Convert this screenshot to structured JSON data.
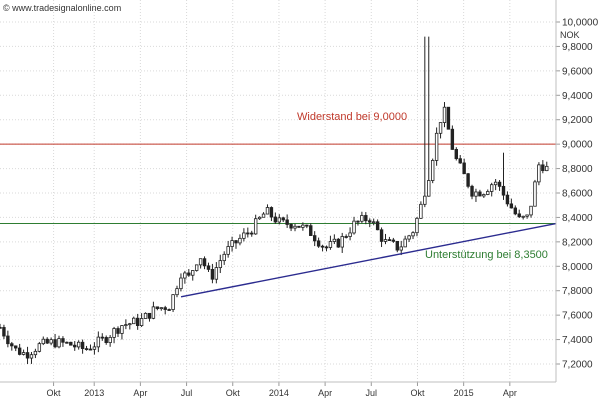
{
  "chart_data": {
    "type": "candlestick",
    "title": "",
    "source": "© www.tradesignalonline.com",
    "unit": "NOK",
    "ylim": [
      7.2,
      10.0
    ],
    "y_ticks": [
      "10,0000",
      "9,8000",
      "9,6000",
      "9,4000",
      "9,2000",
      "9,0000",
      "8,8000",
      "8,6000",
      "8,4000",
      "8,2000",
      "8,0000",
      "7,8000",
      "7,6000",
      "7,4000",
      "7,2000"
    ],
    "x_ticks": [
      "Okt",
      "2013",
      "Apr",
      "Jul",
      "Okt",
      "2014",
      "Apr",
      "Jul",
      "Okt",
      "2015",
      "Apr"
    ],
    "x_tick_positions": [
      1.03,
      1.25,
      1.5,
      1.75,
      2.0,
      2.25,
      2.5,
      2.75,
      3.0,
      3.25,
      3.5
    ],
    "x_range": [
      0.74,
      3.75
    ],
    "grid": true,
    "resistance": {
      "value": 9.0,
      "label": "Widerstand bei 9,0000",
      "color": "#c0392b"
    },
    "support_level": {
      "value": 8.35,
      "label": "Unterstützung bei 8,3500",
      "color": "#2e7d32"
    },
    "trendline": {
      "from": [
        1.72,
        7.75
      ],
      "to": [
        3.75,
        8.35
      ],
      "color": "#2b2b8f"
    },
    "series": [
      {
        "anchors_t": [
          0.74,
          0.82,
          0.88,
          0.95,
          1.03,
          1.12,
          1.2,
          1.3,
          1.4,
          1.5,
          1.58,
          1.66,
          1.72,
          1.76,
          1.82,
          1.88,
          1.95,
          2.02,
          2.1,
          2.18,
          2.26,
          2.34,
          2.42,
          2.5,
          2.58,
          2.66,
          2.74,
          2.82,
          2.9,
          2.98,
          3.02,
          3.07,
          3.1,
          3.14,
          3.2,
          3.3,
          3.36,
          3.42,
          3.48,
          3.55,
          3.6,
          3.66,
          3.7
        ],
        "anchors_v": [
          7.5,
          7.32,
          7.28,
          7.35,
          7.38,
          7.36,
          7.32,
          7.4,
          7.52,
          7.55,
          7.65,
          7.68,
          7.95,
          7.9,
          8.1,
          7.9,
          8.1,
          8.2,
          8.3,
          8.45,
          8.35,
          8.35,
          8.28,
          8.15,
          8.2,
          8.35,
          8.4,
          8.2,
          8.15,
          8.3,
          8.5,
          8.8,
          9.05,
          9.3,
          8.9,
          8.6,
          8.62,
          8.7,
          8.55,
          8.38,
          8.4,
          8.85,
          8.8
        ],
        "spikes": [
          {
            "t": 3.05,
            "high": 9.88
          },
          {
            "t": 3.16,
            "high": 9.3
          },
          {
            "t": 3.46,
            "high": 8.93
          }
        ]
      }
    ]
  }
}
